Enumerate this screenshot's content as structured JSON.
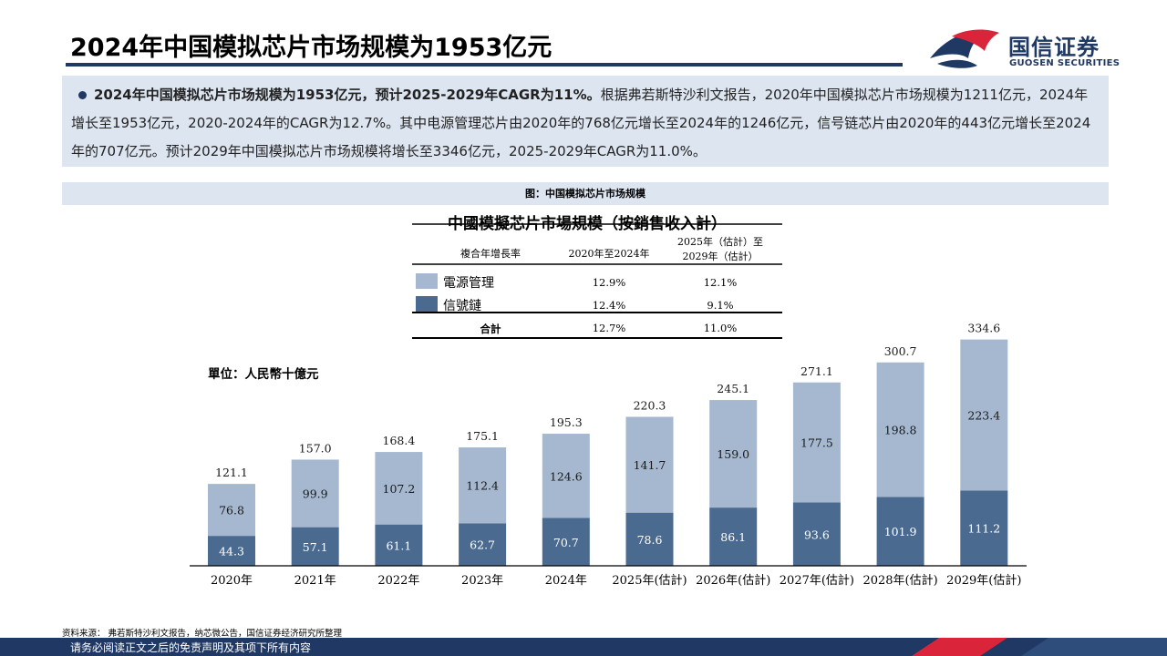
{
  "header": {
    "title": "2024年中国模拟芯片市场规模为1953亿元",
    "logo_cn": "国信证券",
    "logo_en": "GUOSEN SECURITIES"
  },
  "summary": {
    "lead": "2024年中国模拟芯片市场规模为1953亿元，预计2025-2029年CAGR为11%。",
    "body": "根据弗若斯特沙利文报告，2020年中国模拟芯片市场规模为1211亿元，2024年增长至1953亿元，2020-2024年的CAGR为12.7%。其中电源管理芯片由2020年的768亿元增长至2024年的1246亿元，信号链芯片由2020年的443亿元增长至2024年的707亿元。预计2029年中国模拟芯片市场规模将增长至3346亿元，2025-2029年CAGR为11.0%。"
  },
  "figure_caption": "图：中国模拟芯片市场规模",
  "source": "资料来源：  弗若斯特沙利文报告，纳芯微公告，国信证券经济研究所整理",
  "footer": "请务必阅读正文之后的免责声明及其项下所有内容",
  "colors": {
    "navy": "#1f3864",
    "signal_chain": "#4b6a8f",
    "power_mgmt": "#a5b8cf",
    "panel": "#dde5f1",
    "logo_red": "#d9243a"
  },
  "chart_data": {
    "type": "bar",
    "stacked": true,
    "title": "中國模擬芯片市場規模（按銷售收入計）",
    "unit_label": "單位：人民幣十億元",
    "categories": [
      "2020年",
      "2021年",
      "2022年",
      "2023年",
      "2024年",
      "2025年(估計)",
      "2026年(估計)",
      "2027年(估計)",
      "2028年(估計)",
      "2029年(估計)"
    ],
    "series": [
      {
        "name": "信號鏈",
        "color": "#4b6a8f",
        "values": [
          44.3,
          57.1,
          61.1,
          62.7,
          70.7,
          78.6,
          86.1,
          93.6,
          101.9,
          111.2
        ]
      },
      {
        "name": "電源管理",
        "color": "#a5b8cf",
        "values": [
          76.8,
          99.9,
          107.2,
          112.4,
          124.6,
          141.7,
          159.0,
          177.5,
          198.8,
          223.4
        ]
      }
    ],
    "totals": [
      121.1,
      157.0,
      168.4,
      175.1,
      195.3,
      220.3,
      245.1,
      271.1,
      300.7,
      334.6
    ],
    "ylim": [
      0,
      350
    ],
    "cagr_table": {
      "headers": [
        "複合年增長率",
        "2020年至2024年",
        "2025年（估計）至",
        "2029年（估計）"
      ],
      "rows": [
        {
          "name": "電源管理",
          "color": "#a5b8cf",
          "a": "12.9%",
          "b": "12.1%"
        },
        {
          "name": "信號鏈",
          "color": "#4b6a8f",
          "a": "12.4%",
          "b": "9.1%"
        },
        {
          "name": "合計",
          "color": "",
          "a": "12.7%",
          "b": "11.0%"
        }
      ]
    }
  }
}
